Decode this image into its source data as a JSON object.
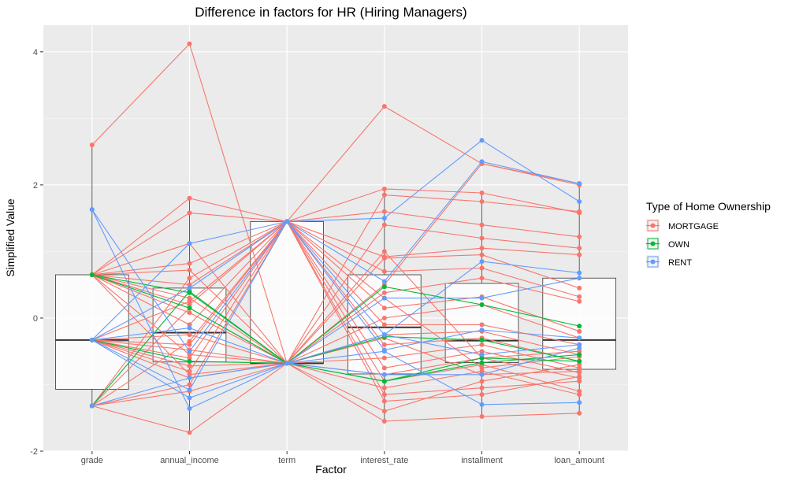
{
  "chart_data": {
    "type": "line",
    "title": "Difference in factors for HR (Hiring Managers)",
    "xlabel": "Factor",
    "ylabel": "Simplified Value",
    "categories": [
      "grade",
      "annual_income",
      "term",
      "interest_rate",
      "installment",
      "loan_amount"
    ],
    "ylim": [
      -2,
      4.4
    ],
    "yticks": [
      -2,
      0,
      2,
      4
    ],
    "grid": true,
    "legend": {
      "title": "Type of Home Ownership",
      "position": "right",
      "entries": [
        "MORTGAGE",
        "OWN",
        "RENT"
      ]
    },
    "colors": {
      "MORTGAGE": "#F8766D",
      "OWN": "#00BA38",
      "RENT": "#619CFF"
    },
    "boxplots": [
      {
        "category": "grade",
        "q1": -1.07,
        "median": -0.33,
        "q3": 0.65,
        "whisker_low": -1.32,
        "whisker_high": 2.6
      },
      {
        "category": "annual_income",
        "q1": -0.66,
        "median": -0.22,
        "q3": 0.45,
        "whisker_low": -1.72,
        "whisker_high": 1.8
      },
      {
        "category": "term",
        "q1": -0.68,
        "median": -0.68,
        "q3": 1.45,
        "whisker_low": -0.68,
        "whisker_high": 1.45
      },
      {
        "category": "interest_rate",
        "q1": -0.84,
        "median": -0.14,
        "q3": 0.65,
        "whisker_low": -1.55,
        "whisker_high": 1.94
      },
      {
        "category": "installment",
        "q1": -0.67,
        "median": -0.34,
        "q3": 0.52,
        "whisker_low": -1.48,
        "whisker_high": 1.88
      },
      {
        "category": "loan_amount",
        "q1": -0.77,
        "median": -0.33,
        "q3": 0.6,
        "whisker_low": -1.43,
        "whisker_high": 2.02
      }
    ],
    "series": [
      {
        "group": "MORTGAGE",
        "values": [
          2.6,
          4.12,
          -0.68,
          1.0,
          -0.6,
          -0.5
        ]
      },
      {
        "group": "MORTGAGE",
        "values": [
          0.65,
          1.8,
          1.45,
          3.18,
          2.32,
          2.02
        ]
      },
      {
        "group": "MORTGAGE",
        "values": [
          0.65,
          1.58,
          1.45,
          1.94,
          1.88,
          1.58
        ]
      },
      {
        "group": "MORTGAGE",
        "values": [
          0.65,
          1.12,
          -0.68,
          1.85,
          1.75,
          1.6
        ]
      },
      {
        "group": "MORTGAGE",
        "values": [
          0.65,
          0.82,
          1.45,
          1.6,
          1.4,
          1.22
        ]
      },
      {
        "group": "MORTGAGE",
        "values": [
          0.65,
          0.72,
          -0.68,
          1.4,
          1.2,
          1.05
        ]
      },
      {
        "group": "MORTGAGE",
        "values": [
          0.65,
          0.5,
          1.45,
          0.92,
          1.05,
          0.95
        ]
      },
      {
        "group": "MORTGAGE",
        "values": [
          0.65,
          0.3,
          -0.68,
          0.9,
          0.95,
          0.45
        ]
      },
      {
        "group": "MORTGAGE",
        "values": [
          0.65,
          0.2,
          1.45,
          0.7,
          0.75,
          0.32
        ]
      },
      {
        "group": "MORTGAGE",
        "values": [
          0.65,
          0.08,
          -0.68,
          0.38,
          0.6,
          0.25
        ]
      },
      {
        "group": "MORTGAGE",
        "values": [
          0.65,
          -0.1,
          1.45,
          0.15,
          0.32,
          -0.2
        ]
      },
      {
        "group": "MORTGAGE",
        "values": [
          -0.33,
          -0.25,
          -0.68,
          0.0,
          0.2,
          -0.3
        ]
      },
      {
        "group": "MORTGAGE",
        "values": [
          -0.33,
          -0.4,
          1.45,
          -0.1,
          -0.1,
          -0.4
        ]
      },
      {
        "group": "MORTGAGE",
        "values": [
          -0.33,
          -0.48,
          -0.68,
          -0.25,
          -0.2,
          -0.55
        ]
      },
      {
        "group": "MORTGAGE",
        "values": [
          -0.33,
          -0.6,
          1.45,
          -0.4,
          -0.3,
          -0.65
        ]
      },
      {
        "group": "MORTGAGE",
        "values": [
          -0.33,
          -0.72,
          -0.68,
          -0.6,
          -0.4,
          -0.75
        ]
      },
      {
        "group": "MORTGAGE",
        "values": [
          -0.33,
          -0.8,
          1.45,
          -0.75,
          -0.5,
          -0.82
        ]
      },
      {
        "group": "MORTGAGE",
        "values": [
          -0.33,
          -0.9,
          -0.68,
          -0.85,
          -0.6,
          -0.9
        ]
      },
      {
        "group": "MORTGAGE",
        "values": [
          -1.32,
          -1.0,
          1.45,
          -0.95,
          -0.7,
          -1.1
        ]
      },
      {
        "group": "MORTGAGE",
        "values": [
          -1.32,
          -1.1,
          -0.68,
          -1.05,
          -0.8,
          -1.15
        ]
      },
      {
        "group": "MORTGAGE",
        "values": [
          -1.32,
          -1.72,
          -0.68,
          -1.55,
          -1.48,
          -1.43
        ]
      },
      {
        "group": "MORTGAGE",
        "values": [
          -1.32,
          -0.35,
          1.45,
          -1.25,
          -1.15,
          -0.88
        ]
      },
      {
        "group": "MORTGAGE",
        "values": [
          -1.32,
          0.15,
          -0.68,
          -1.4,
          -0.95,
          -0.7
        ]
      },
      {
        "group": "MORTGAGE",
        "values": [
          -1.32,
          0.6,
          1.45,
          -1.15,
          -1.05,
          -0.95
        ]
      },
      {
        "group": "MORTGAGE",
        "values": [
          0.65,
          -0.55,
          -0.68,
          0.5,
          2.32,
          2.0
        ]
      },
      {
        "group": "MORTGAGE",
        "values": [
          -0.33,
          0.25,
          1.45,
          0.3,
          -0.75,
          -0.58
        ]
      },
      {
        "group": "MORTGAGE",
        "values": [
          0.65,
          -0.85,
          -0.68,
          -0.3,
          -0.85,
          -0.8
        ]
      },
      {
        "group": "OWN",
        "values": [
          0.65,
          0.38,
          -0.68,
          0.47,
          0.2,
          -0.12
        ]
      },
      {
        "group": "OWN",
        "values": [
          0.65,
          0.15,
          -0.68,
          -0.28,
          -0.33,
          -0.65
        ]
      },
      {
        "group": "OWN",
        "values": [
          -0.33,
          -0.65,
          -0.68,
          -0.95,
          -0.6,
          -0.65
        ]
      },
      {
        "group": "OWN",
        "values": [
          -1.32,
          0.4,
          -0.68,
          -0.95,
          -0.67,
          -0.55
        ]
      },
      {
        "group": "RENT",
        "values": [
          1.63,
          -0.5,
          1.45,
          1.5,
          2.67,
          1.75
        ]
      },
      {
        "group": "RENT",
        "values": [
          -0.33,
          1.12,
          1.45,
          0.55,
          2.35,
          2.02
        ]
      },
      {
        "group": "RENT",
        "values": [
          -0.33,
          0.45,
          1.45,
          -0.25,
          0.85,
          0.68
        ]
      },
      {
        "group": "RENT",
        "values": [
          -0.33,
          -0.15,
          -0.68,
          0.3,
          0.3,
          0.6
        ]
      },
      {
        "group": "RENT",
        "values": [
          -0.33,
          -1.08,
          1.45,
          -0.48,
          -0.18,
          -0.3
        ]
      },
      {
        "group": "RENT",
        "values": [
          1.63,
          -1.36,
          -0.68,
          -0.25,
          -0.55,
          -0.4
        ]
      },
      {
        "group": "RENT",
        "values": [
          -1.32,
          -0.9,
          -0.68,
          -0.85,
          -0.85,
          -0.45
        ]
      },
      {
        "group": "RENT",
        "values": [
          -0.33,
          -1.2,
          -0.68,
          -0.5,
          -1.3,
          -1.27
        ]
      }
    ]
  }
}
